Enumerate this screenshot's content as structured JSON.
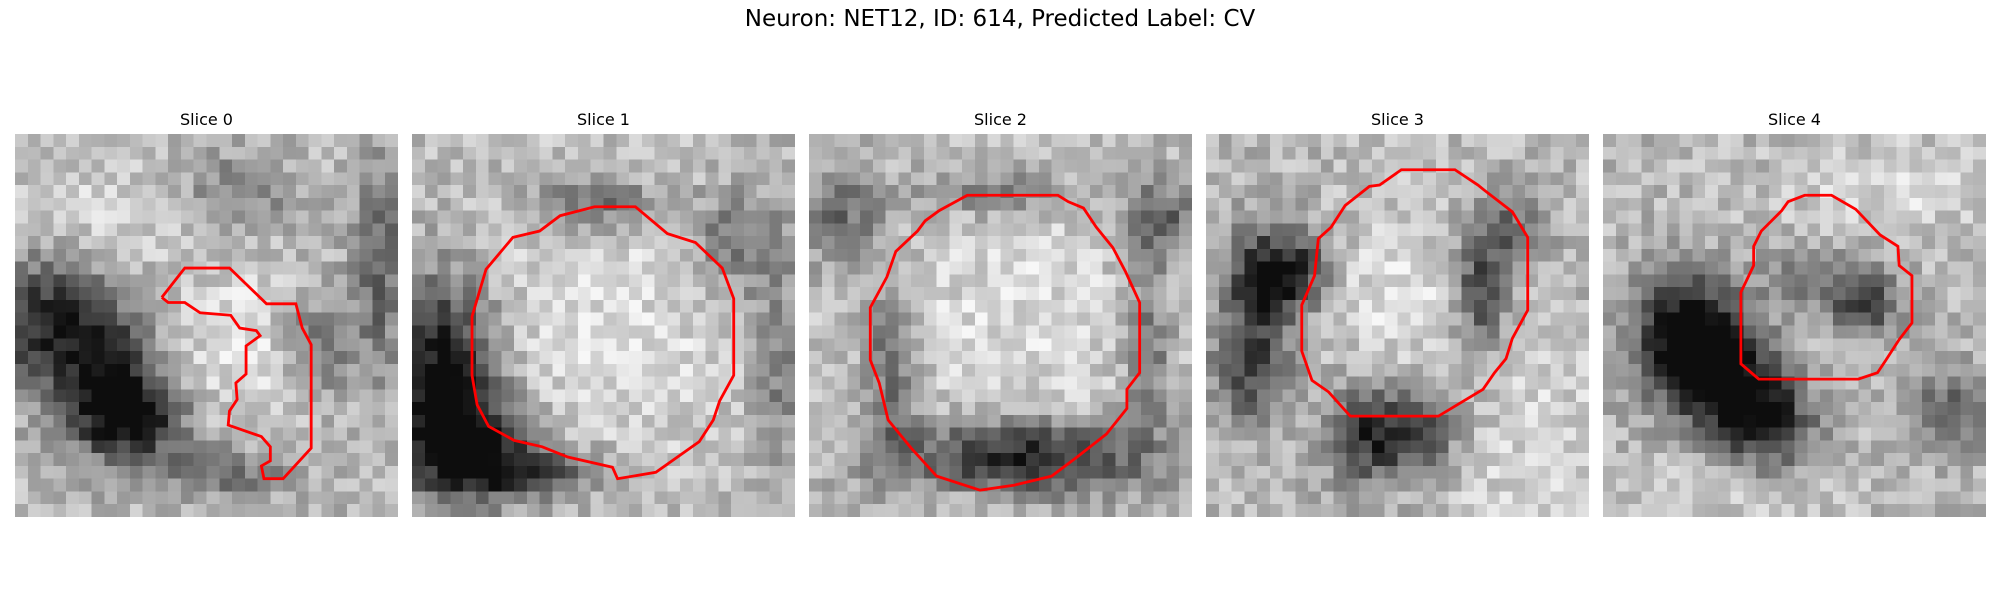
{
  "figure": {
    "title": "Neuron: NET12, ID: 614, Predicted Label: CV"
  },
  "panels": [
    {
      "title": "Slice 0"
    },
    {
      "title": "Slice 1"
    },
    {
      "title": "Slice 2"
    },
    {
      "title": "Slice 3"
    },
    {
      "title": "Slice 4"
    }
  ],
  "colors": {
    "contour": "#ff0000",
    "background": "#ffffff"
  }
}
